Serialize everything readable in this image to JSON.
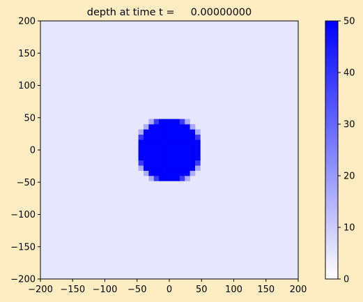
{
  "chart_data": {
    "type": "heatmap",
    "title": "depth at time t =     0.00000000",
    "xlabel": "",
    "ylabel": "",
    "xlim": [
      -200,
      200
    ],
    "ylim": [
      -200,
      200
    ],
    "x_ticks": [
      -200,
      -150,
      -100,
      -50,
      0,
      50,
      100,
      150,
      200
    ],
    "y_ticks": [
      -200,
      -150,
      -100,
      -50,
      0,
      50,
      100,
      150,
      200
    ],
    "x_tick_labels": [
      "−200",
      "−150",
      "−100",
      "−50",
      "0",
      "50",
      "100",
      "150",
      "200"
    ],
    "y_tick_labels": [
      "−200",
      "−150",
      "−100",
      "−50",
      "0",
      "50",
      "100",
      "150",
      "200"
    ],
    "background_value": 5,
    "cell_size": 8,
    "blob": {
      "center": [
        0,
        0
      ],
      "radius": 50,
      "inner_value": 50,
      "outer_value": 5
    },
    "colorbar": {
      "min": 0,
      "max": 50,
      "ticks": [
        0,
        10,
        20,
        30,
        40,
        50
      ],
      "tick_labels": [
        "0",
        "10",
        "20",
        "30",
        "40",
        "50"
      ],
      "colormap": [
        "#FFFFFF",
        "#0000FF"
      ]
    }
  }
}
